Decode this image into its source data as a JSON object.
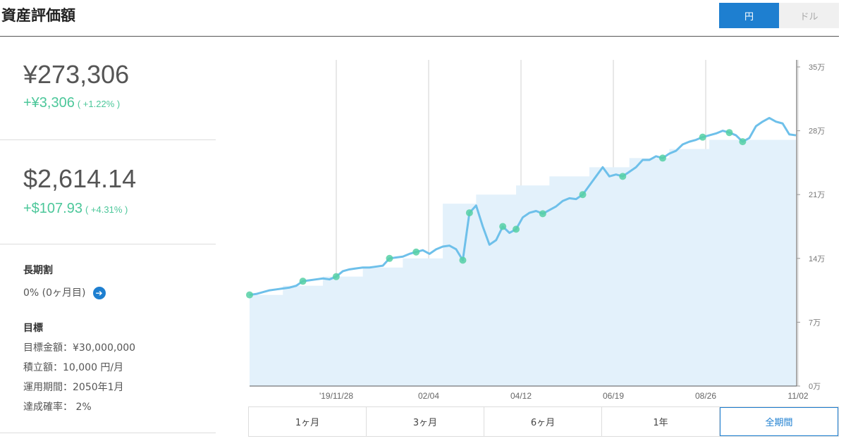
{
  "header": {
    "title": "資産評価額"
  },
  "currency_toggle": {
    "yen": "円",
    "dollar": "ドル",
    "selected": "円"
  },
  "summary_yen": {
    "value": "¥273,306",
    "change": "+¥3,306",
    "change_pct": "( +1.22% )"
  },
  "summary_usd": {
    "value": "$2,614.14",
    "change": "+$107.93",
    "change_pct": "( +4.31% )"
  },
  "long_term": {
    "heading": "長期割",
    "text": "0% (0ヶ月目)"
  },
  "goal": {
    "heading": "目標",
    "amount": "目標金額：¥30,000,000",
    "monthly": "積立額：10,000 円/月",
    "period": "運用期間：2050年1月",
    "probability": "達成確率： 2%"
  },
  "range_tabs": [
    "1ヶ月",
    "3ヶ月",
    "6ヶ月",
    "1年",
    "全期間"
  ],
  "range_selected": "全期間",
  "colors": {
    "accent": "#1e7fd0",
    "gain": "#4cc79a",
    "line": "#6ec0ea",
    "fill": "#e3f1fb",
    "marker": "#56d0a4"
  },
  "chart_data": {
    "type": "line",
    "x_tick_labels": [
      "'19/11/28",
      "02/04",
      "04/12",
      "06/19",
      "08/26",
      "11/02"
    ],
    "y_tick_labels": [
      "0万",
      "7万",
      "14万",
      "21万",
      "28万",
      "35万"
    ],
    "ylim": [
      0,
      35
    ],
    "yunit": "万",
    "grid": "vertical",
    "series": [
      {
        "role": "valuation",
        "values": [
          10.0,
          10.1,
          10.3,
          10.5,
          10.6,
          10.7,
          10.8,
          11.0,
          11.5,
          11.6,
          11.7,
          11.8,
          11.7,
          12.0,
          12.6,
          12.8,
          12.9,
          13.0,
          13.0,
          13.1,
          13.2,
          14.0,
          14.1,
          14.2,
          14.5,
          14.7,
          14.9,
          14.5,
          15.0,
          15.3,
          15.4,
          15.0,
          13.8,
          19.0,
          19.8,
          17.5,
          15.5,
          16.0,
          17.5,
          16.8,
          17.2,
          18.5,
          19.0,
          19.2,
          18.9,
          19.3,
          19.7,
          20.3,
          20.6,
          20.5,
          21.0,
          22.0,
          23.0,
          24.0,
          23.0,
          23.2,
          23.0,
          23.5,
          24.0,
          24.8,
          24.8,
          25.2,
          25.0,
          25.5,
          25.8,
          26.5,
          26.8,
          27.0,
          27.3,
          27.5,
          27.7,
          28.0,
          27.8,
          27.5,
          26.8,
          27.2,
          28.5,
          29.0,
          29.4,
          29.0,
          28.8,
          27.6,
          27.5
        ]
      },
      {
        "role": "principal",
        "values": [
          10.0,
          10.0,
          10.0,
          10.0,
          10.0,
          11.0,
          11.0,
          11.0,
          11.0,
          11.0,
          11.0,
          12.0,
          12.0,
          12.0,
          12.0,
          12.0,
          12.0,
          13.0,
          13.0,
          13.0,
          13.0,
          13.0,
          13.0,
          14.0,
          14.0,
          14.0,
          14.0,
          14.0,
          14.0,
          20.0,
          20.0,
          20.0,
          20.0,
          20.0,
          21.0,
          21.0,
          21.0,
          21.0,
          21.0,
          21.0,
          22.0,
          22.0,
          22.0,
          22.0,
          22.0,
          23.0,
          23.0,
          23.0,
          23.0,
          23.0,
          23.0,
          24.0,
          24.0,
          24.0,
          24.0,
          24.0,
          24.0,
          25.0,
          25.0,
          25.0,
          25.0,
          25.0,
          25.0,
          26.0,
          26.0,
          26.0,
          26.0,
          26.0,
          26.0,
          27.0,
          27.0,
          27.0,
          27.0,
          27.0,
          27.0,
          27.0,
          27.0,
          27.0,
          27.0,
          27.0,
          27.0,
          27.0,
          27.0
        ]
      }
    ],
    "deposit_markers": [
      0,
      8,
      13,
      21,
      25,
      32,
      33,
      38,
      40,
      44,
      50,
      56,
      62,
      68,
      72,
      74
    ]
  }
}
